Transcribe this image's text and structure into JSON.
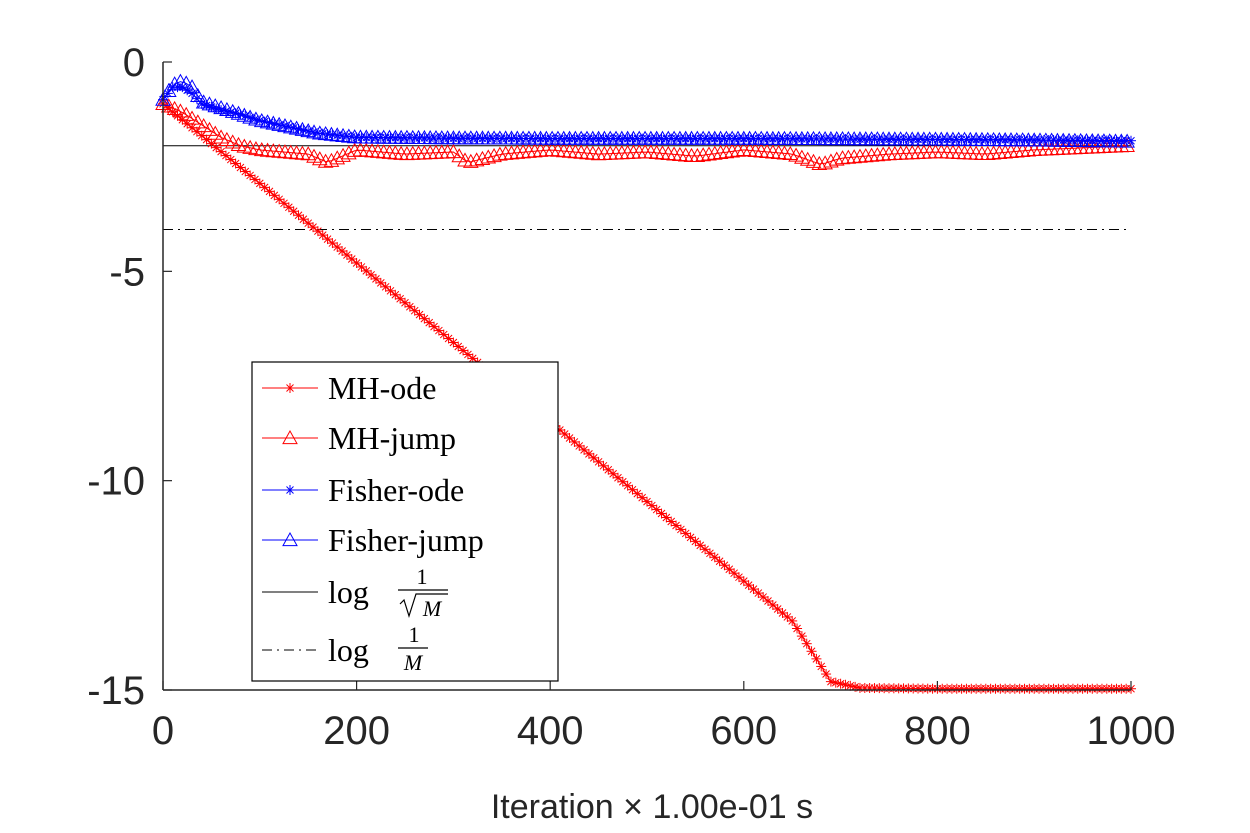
{
  "chart_data": {
    "type": "line",
    "title": "",
    "xlabel": "Iteration × 1.00e-01 s",
    "ylabel": "",
    "xlim": [
      0,
      1000
    ],
    "ylim": [
      -15,
      0
    ],
    "xticks": [
      "0",
      "200",
      "400",
      "600",
      "800",
      "1000"
    ],
    "yticks": [
      "0",
      "-5",
      "-10",
      "-15"
    ],
    "grid": false,
    "legend_position": "lower-left",
    "series": [
      {
        "name": "MH-ode",
        "color": "#ff0000",
        "marker": "asterisk",
        "x": [
          0,
          50,
          100,
          150,
          200,
          250,
          300,
          350,
          400,
          450,
          500,
          550,
          600,
          650,
          690,
          720,
          800,
          900,
          1000
        ],
        "y": [
          -1.0,
          -1.95,
          -2.9,
          -3.85,
          -4.8,
          -5.75,
          -6.7,
          -7.65,
          -8.6,
          -9.55,
          -10.5,
          -11.45,
          -12.4,
          -13.35,
          -14.8,
          -14.95,
          -14.97,
          -14.97,
          -14.97
        ]
      },
      {
        "name": "MH-jump",
        "color": "#ff0000",
        "marker": "triangle",
        "x": [
          0,
          20,
          40,
          60,
          80,
          100,
          150,
          170,
          200,
          250,
          300,
          315,
          350,
          400,
          450,
          500,
          550,
          600,
          650,
          680,
          700,
          750,
          800,
          850,
          900,
          950,
          1000
        ],
        "y": [
          -1.0,
          -1.2,
          -1.5,
          -1.8,
          -2.0,
          -2.1,
          -2.2,
          -2.4,
          -2.1,
          -2.2,
          -2.15,
          -2.4,
          -2.2,
          -2.1,
          -2.2,
          -2.15,
          -2.25,
          -2.1,
          -2.2,
          -2.45,
          -2.3,
          -2.2,
          -2.15,
          -2.2,
          -2.1,
          -2.05,
          -2.0
        ]
      },
      {
        "name": "Fisher-ode",
        "color": "#0000ff",
        "marker": "asterisk",
        "x": [
          0,
          10,
          20,
          30,
          40,
          60,
          80,
          100,
          130,
          160,
          200,
          300,
          400,
          500,
          600,
          700,
          800,
          900,
          1000
        ],
        "y": [
          -0.9,
          -0.6,
          -0.6,
          -0.75,
          -1.0,
          -1.15,
          -1.25,
          -1.4,
          -1.55,
          -1.7,
          -1.8,
          -1.82,
          -1.83,
          -1.83,
          -1.83,
          -1.84,
          -1.85,
          -1.86,
          -1.88
        ]
      },
      {
        "name": "Fisher-jump",
        "color": "#0000ff",
        "marker": "triangle",
        "x": [
          0,
          10,
          20,
          30,
          40,
          60,
          80,
          100,
          130,
          160,
          200,
          300,
          400,
          500,
          600,
          700,
          800,
          900,
          1000
        ],
        "y": [
          -0.9,
          -0.55,
          -0.45,
          -0.6,
          -0.95,
          -1.1,
          -1.25,
          -1.4,
          -1.55,
          -1.7,
          -1.8,
          -1.82,
          -1.83,
          -1.83,
          -1.83,
          -1.84,
          -1.85,
          -1.87,
          -1.9
        ]
      }
    ],
    "reference_lines": [
      {
        "name": "log 1/√M",
        "label_prefix": "log",
        "numerator": "1",
        "denominator": "M",
        "sqrt": true,
        "y": -2.0,
        "style": "solid",
        "color": "#000000"
      },
      {
        "name": "log 1/M",
        "label_prefix": "log",
        "numerator": "1",
        "denominator": "M",
        "sqrt": false,
        "y": -4.0,
        "style": "dashdot",
        "color": "#000000"
      }
    ]
  }
}
